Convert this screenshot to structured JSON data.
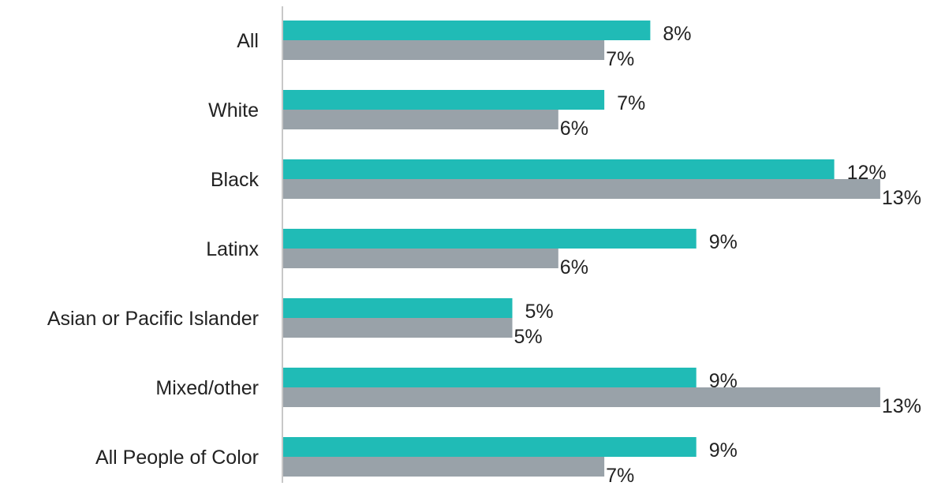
{
  "chart_data": {
    "type": "bar",
    "orientation": "horizontal",
    "categories": [
      "All",
      "White",
      "Black",
      "Latinx",
      "Asian or Pacific Islander",
      "Mixed/other",
      "All People of Color"
    ],
    "series": [
      {
        "values": [
          8,
          7,
          12,
          9,
          5,
          9,
          9
        ],
        "labels": [
          "8%",
          "7%",
          "12%",
          "9%",
          "5%",
          "9%",
          "9%"
        ],
        "color": "#20BBB6"
      },
      {
        "values": [
          7,
          6,
          13,
          6,
          5,
          13,
          7
        ],
        "labels": [
          "7%",
          "6%",
          "13%",
          "6%",
          "5%",
          "13%",
          "7%"
        ],
        "color": "#99A2A9"
      }
    ],
    "xlim": [
      0,
      13.5
    ],
    "grid": false,
    "legend": "none"
  },
  "colors": {
    "axis": "#C8C8C8",
    "text": "#222222"
  }
}
